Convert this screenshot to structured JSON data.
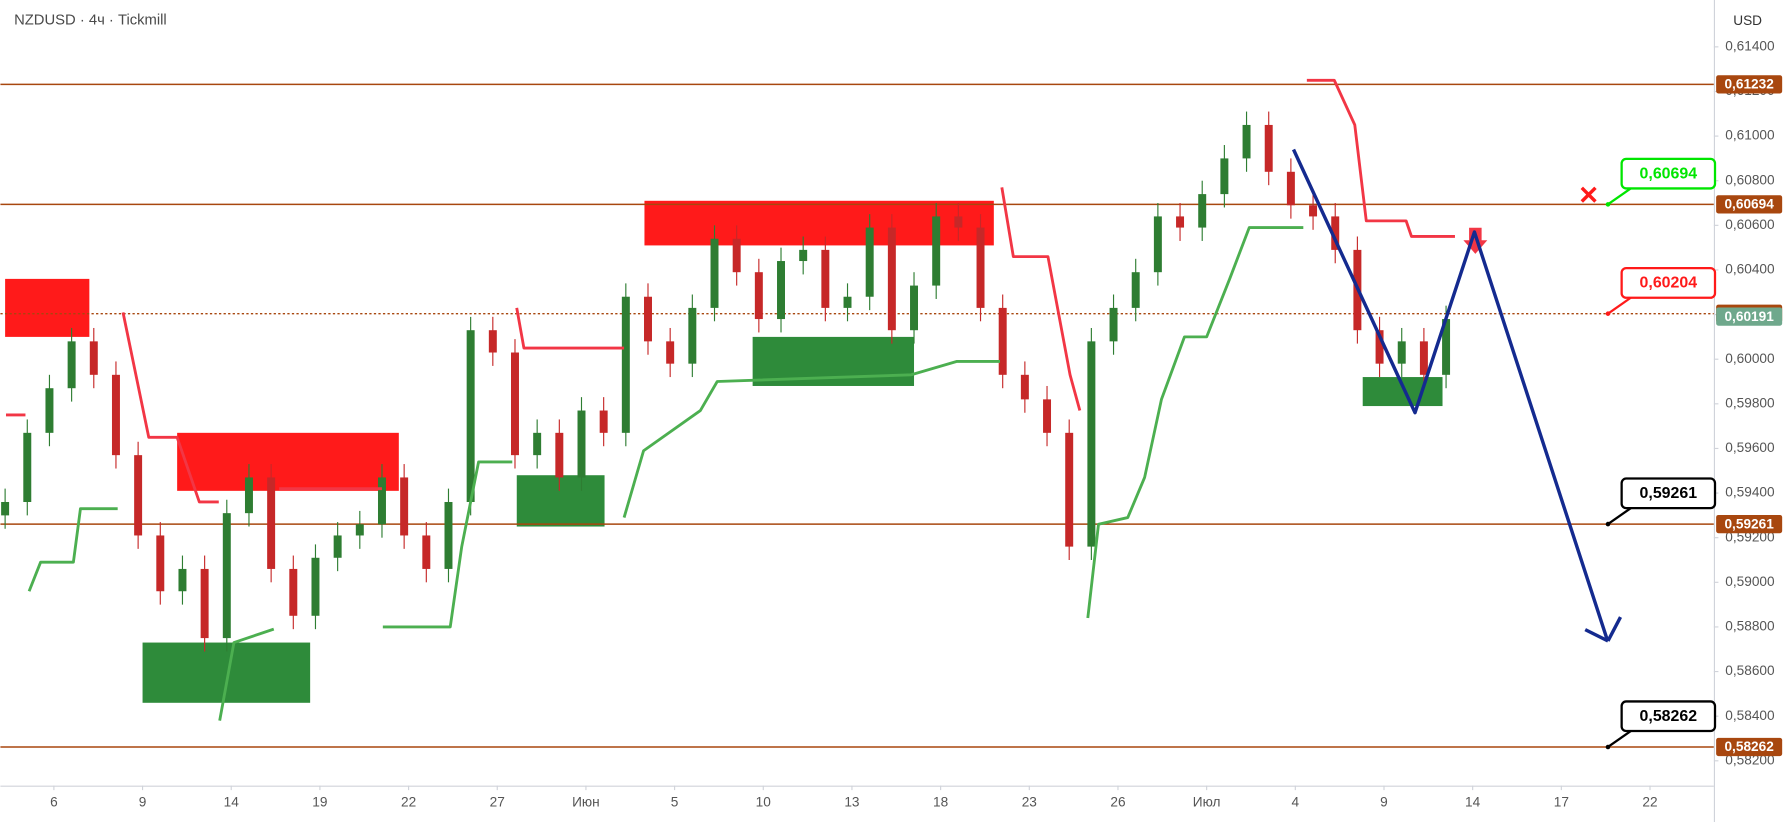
{
  "chart_data": {
    "type": "candlestick",
    "title": "NZDUSD · 4ч · Tickmill",
    "currency": "USD",
    "xlim": [
      -0.603,
      18.72
    ],
    "ylim": [
      0.58089,
      0.6161
    ],
    "xticks": [
      {
        "value": 0,
        "label": "6"
      },
      {
        "value": 1,
        "label": "9"
      },
      {
        "value": 2,
        "label": "14"
      },
      {
        "value": 3,
        "label": "19"
      },
      {
        "value": 4,
        "label": "22"
      },
      {
        "value": 5,
        "label": "27"
      },
      {
        "value": 6,
        "label": "Июн"
      },
      {
        "value": 7,
        "label": "5"
      },
      {
        "value": 8,
        "label": "10"
      },
      {
        "value": 9,
        "label": "13"
      },
      {
        "value": 10,
        "label": "18"
      },
      {
        "value": 11,
        "label": "23"
      },
      {
        "value": 12,
        "label": "26"
      },
      {
        "value": 13,
        "label": "Июл"
      },
      {
        "value": 14,
        "label": "4"
      },
      {
        "value": 15,
        "label": "9"
      },
      {
        "value": 16,
        "label": "14"
      },
      {
        "value": 17,
        "label": "17"
      },
      {
        "value": 18,
        "label": "22"
      }
    ],
    "yticks": [
      {
        "value": 0.582,
        "label": "0,58200"
      },
      {
        "value": 0.584,
        "label": "0,58400"
      },
      {
        "value": 0.586,
        "label": "0,58600"
      },
      {
        "value": 0.588,
        "label": "0,58800"
      },
      {
        "value": 0.59,
        "label": "0,59000"
      },
      {
        "value": 0.592,
        "label": "0,59200"
      },
      {
        "value": 0.594,
        "label": "0,59400"
      },
      {
        "value": 0.596,
        "label": "0,59600"
      },
      {
        "value": 0.598,
        "label": "0,59800"
      },
      {
        "value": 0.6,
        "label": "0,60000"
      },
      {
        "value": 0.602,
        "label": "0,60200"
      },
      {
        "value": 0.604,
        "label": "0,60400"
      },
      {
        "value": 0.606,
        "label": "0,60600"
      },
      {
        "value": 0.608,
        "label": "0,60800"
      },
      {
        "value": 0.61,
        "label": "0,61000"
      },
      {
        "value": 0.612,
        "label": "0,61200"
      },
      {
        "value": 0.614,
        "label": "0,61400"
      }
    ],
    "up_color": "#2e7d32",
    "down_color": "#c62828",
    "x": [
      -0.55,
      -0.3,
      -0.05,
      0.2,
      0.45,
      0.7,
      0.95,
      1.2,
      1.45,
      1.7,
      1.95,
      2.2,
      2.45,
      2.7,
      2.95,
      3.2,
      3.45,
      3.7,
      3.95,
      4.2,
      4.45,
      4.7,
      4.95,
      5.2,
      5.45,
      5.7,
      5.95,
      6.2,
      6.45,
      6.7,
      6.95,
      7.2,
      7.45,
      7.7,
      7.95,
      8.2,
      8.45,
      8.7,
      8.95,
      9.2,
      9.45,
      9.7,
      9.95,
      10.2,
      10.45,
      10.7,
      10.95,
      11.2,
      11.45,
      11.7,
      11.95,
      12.2,
      12.45,
      12.7,
      12.95,
      13.2,
      13.45,
      13.7,
      13.95,
      14.2,
      14.45,
      14.7,
      14.95,
      15.2,
      15.45,
      15.7
    ],
    "open": [
      0.593,
      0.5936,
      0.5967,
      0.5987,
      0.6008,
      0.5993,
      0.5957,
      0.5921,
      0.5896,
      0.5906,
      0.5875,
      0.5931,
      0.5947,
      0.5906,
      0.5885,
      0.5911,
      0.5921,
      0.5926,
      0.5947,
      0.5921,
      0.5906,
      0.5936,
      0.6013,
      0.6003,
      0.5957,
      0.5967,
      0.5947,
      0.5977,
      0.5967,
      0.6028,
      0.6008,
      0.5998,
      0.6023,
      0.6054,
      0.6039,
      0.6018,
      0.6044,
      0.6049,
      0.6023,
      0.6028,
      0.6059,
      0.6013,
      0.6033,
      0.6064,
      0.6059,
      0.6023,
      0.5993,
      0.5982,
      0.5967,
      0.5916,
      0.6008,
      0.6023,
      0.6039,
      0.6064,
      0.6059,
      0.6074,
      0.609,
      0.6105,
      0.6084,
      0.6069,
      0.6064,
      0.6049,
      0.6013,
      0.5998,
      0.6008,
      0.5993
    ],
    "high": [
      0.5942,
      0.5973,
      0.5993,
      0.6014,
      0.6014,
      0.5999,
      0.5963,
      0.5927,
      0.5912,
      0.5912,
      0.5937,
      0.5953,
      0.5953,
      0.5912,
      0.5917,
      0.5927,
      0.5932,
      0.5953,
      0.5953,
      0.5927,
      0.5942,
      0.6019,
      0.6019,
      0.6009,
      0.5973,
      0.5973,
      0.5983,
      0.5983,
      0.6034,
      0.6034,
      0.6014,
      0.6029,
      0.606,
      0.606,
      0.6045,
      0.605,
      0.6055,
      0.6055,
      0.6034,
      0.6065,
      0.6065,
      0.6039,
      0.607,
      0.607,
      0.6065,
      0.6029,
      0.5999,
      0.5988,
      0.5973,
      0.6014,
      0.6029,
      0.6045,
      0.607,
      0.607,
      0.608,
      0.6096,
      0.6111,
      0.6111,
      0.609,
      0.6075,
      0.607,
      0.6055,
      0.6019,
      0.6014,
      0.6014,
      0.6024
    ],
    "low": [
      0.5924,
      0.593,
      0.5961,
      0.5981,
      0.5987,
      0.5951,
      0.5915,
      0.589,
      0.589,
      0.5869,
      0.5869,
      0.5925,
      0.59,
      0.5879,
      0.5879,
      0.5905,
      0.5915,
      0.592,
      0.5915,
      0.59,
      0.59,
      0.593,
      0.5997,
      0.5951,
      0.5951,
      0.5941,
      0.5941,
      0.5961,
      0.5961,
      0.6002,
      0.5992,
      0.5992,
      0.6017,
      0.6033,
      0.6012,
      0.6012,
      0.6038,
      0.6017,
      0.6017,
      0.6022,
      0.6007,
      0.6007,
      0.6027,
      0.6053,
      0.6017,
      0.5987,
      0.5976,
      0.5961,
      0.591,
      0.591,
      0.6002,
      0.6017,
      0.6033,
      0.6053,
      0.6053,
      0.6068,
      0.6084,
      0.6078,
      0.6063,
      0.6058,
      0.6043,
      0.6007,
      0.5992,
      0.5992,
      0.5987,
      0.5987
    ],
    "close": [
      0.5936,
      0.5967,
      0.5987,
      0.6008,
      0.5993,
      0.5957,
      0.5921,
      0.5896,
      0.5906,
      0.5875,
      0.5931,
      0.5947,
      0.5906,
      0.5885,
      0.5911,
      0.5921,
      0.5926,
      0.5947,
      0.5921,
      0.5906,
      0.5936,
      0.6013,
      0.6003,
      0.5957,
      0.5967,
      0.5947,
      0.5977,
      0.5967,
      0.6028,
      0.6008,
      0.5998,
      0.6023,
      0.6054,
      0.6039,
      0.6018,
      0.6044,
      0.6049,
      0.6023,
      0.6028,
      0.6059,
      0.6013,
      0.6033,
      0.6064,
      0.6059,
      0.6023,
      0.5993,
      0.5982,
      0.5967,
      0.5916,
      0.6008,
      0.6023,
      0.6039,
      0.6064,
      0.6059,
      0.6074,
      0.609,
      0.6105,
      0.6084,
      0.6069,
      0.6064,
      0.6049,
      0.6013,
      0.5998,
      0.6008,
      0.5993,
      0.6018
    ],
    "zones": [
      {
        "x": [
          -0.55,
          0.4
        ],
        "y": [
          0.601,
          0.6036
        ],
        "color": "#ff1a1a"
      },
      {
        "x": [
          1.39,
          3.89
        ],
        "y": [
          0.5941,
          0.5967
        ],
        "color": "#ff1a1a"
      },
      {
        "x": [
          6.66,
          10.6
        ],
        "y": [
          0.6051,
          0.6071
        ],
        "color": "#ff1a1a"
      },
      {
        "x": [
          1.0,
          2.89
        ],
        "y": [
          0.5846,
          0.5873
        ],
        "color": "#2e8b3a"
      },
      {
        "x": [
          5.22,
          6.21
        ],
        "y": [
          0.5925,
          0.5948
        ],
        "color": "#2e8b3a"
      },
      {
        "x": [
          7.88,
          9.7
        ],
        "y": [
          0.5988,
          0.601
        ],
        "color": "#2e8b3a"
      },
      {
        "x": [
          14.76,
          15.66
        ],
        "y": [
          0.5979,
          0.5992
        ],
        "color": "#2e8b3a"
      }
    ],
    "series": [
      {
        "color": "#4caf50",
        "width": 2.5,
        "x": [
          -0.28,
          -0.15,
          0.22,
          0.3,
          0.72,
          null,
          1.87,
          2.03,
          2.48,
          null,
          3.71,
          4.47,
          4.6,
          4.79,
          5.17,
          null,
          6.43,
          6.65,
          7.29,
          7.48,
          9.67,
          10.18,
          10.67,
          null,
          11.66,
          11.78,
          12.11,
          12.3,
          12.49,
          12.75,
          13.0,
          13.26,
          13.48,
          14.09
        ],
        "values": [
          0.5896,
          0.5909,
          0.5909,
          0.5933,
          0.5933,
          null,
          0.5838,
          0.5873,
          0.5879,
          null,
          0.588,
          0.588,
          0.5916,
          0.5954,
          0.5954,
          null,
          0.5929,
          0.5959,
          0.5977,
          0.599,
          0.5993,
          0.5999,
          0.5999,
          null,
          0.5884,
          0.5926,
          0.5929,
          0.5947,
          0.5982,
          0.601,
          0.601,
          0.6036,
          0.6059,
          0.6059
        ]
      },
      {
        "color": "#f23645",
        "width": 2.5,
        "x": [
          -0.54,
          -0.32,
          null,
          0.78,
          1.07,
          1.39,
          1.64,
          1.86,
          null,
          2.54,
          3.7,
          null,
          5.22,
          5.3,
          6.43,
          null,
          10.69,
          10.82,
          11.21,
          11.46,
          11.57,
          null,
          14.13,
          14.44,
          14.67,
          14.8,
          15.25,
          15.31,
          15.8
        ],
        "values": [
          0.5975,
          0.5975,
          null,
          0.6021,
          0.5965,
          0.5965,
          0.5936,
          0.5936,
          null,
          0.5942,
          0.5942,
          null,
          0.6023,
          0.6005,
          0.6005,
          null,
          0.6077,
          0.6046,
          0.6046,
          0.5993,
          0.5977,
          null,
          0.6125,
          0.6125,
          0.6105,
          0.6062,
          0.6062,
          0.6055,
          0.6055
        ]
      },
      {
        "color": "#142a8f",
        "width": 3,
        "x": [
          13.98,
          15.35,
          16.02,
          17.52
        ],
        "values": [
          0.6094,
          0.5976,
          0.6057,
          0.5874
        ]
      }
    ],
    "level_color": "#a8470f",
    "levels": [
      {
        "value": 0.61232,
        "label": "0,61232",
        "line": "solid"
      },
      {
        "value": 0.60694,
        "label": "0,60694",
        "line": "solid",
        "callout": "#00e600"
      },
      {
        "value": 0.60204,
        "label": "0,60204",
        "line": "dotted",
        "callout": "#ff1a1a"
      },
      {
        "value": 0.60191,
        "label": "0,60191",
        "badge": "#6fa88c"
      },
      {
        "value": 0.59261,
        "label": "0,59261",
        "line": "solid",
        "callout": "#000000"
      },
      {
        "value": 0.58262,
        "label": "0,58262",
        "line": "solid",
        "callout": "#000000"
      }
    ]
  }
}
